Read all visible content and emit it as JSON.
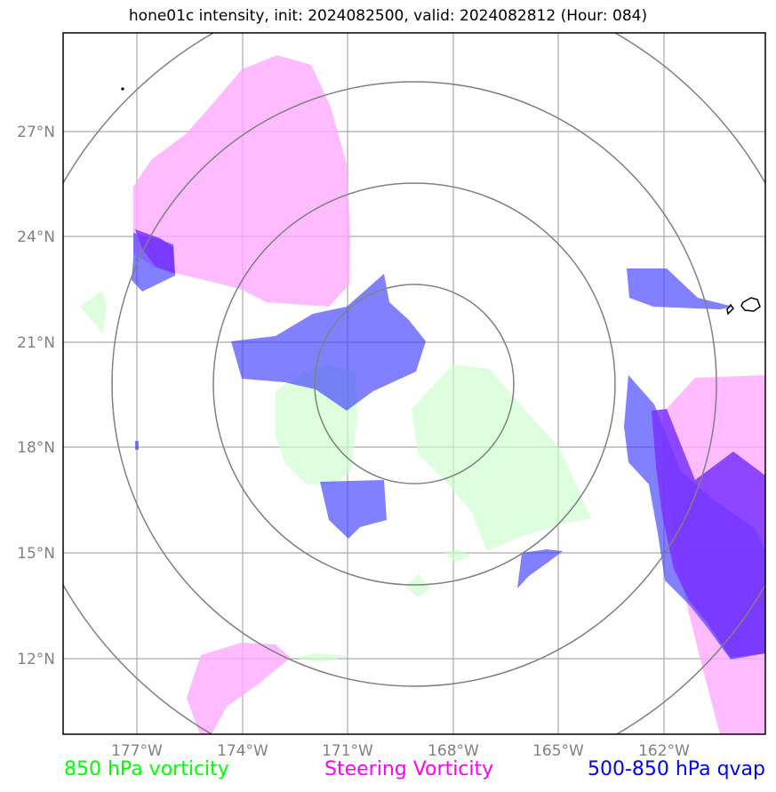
{
  "title": "hone01c intensity, init: 2024082500, valid: 2024082812 (Hour: 084)",
  "axes": {
    "lon_ticks": [
      "177°W",
      "174°W",
      "171°W",
      "168°W",
      "165°W",
      "162°W"
    ],
    "lat_ticks": [
      "27°N",
      "24°N",
      "21°N",
      "18°N",
      "15°N",
      "12°N"
    ]
  },
  "legend": {
    "vort850": "850 hPa vorticity",
    "steering": "Steering Vorticity",
    "qvap": "500-850 hPa qvap"
  },
  "colors": {
    "vort850": "#ccffcc",
    "steering": "#ffa8ff",
    "qvap": "#3333ff",
    "overlap": "#7a33ff",
    "grid": "#aaaaaa",
    "rings": "#808080"
  }
}
